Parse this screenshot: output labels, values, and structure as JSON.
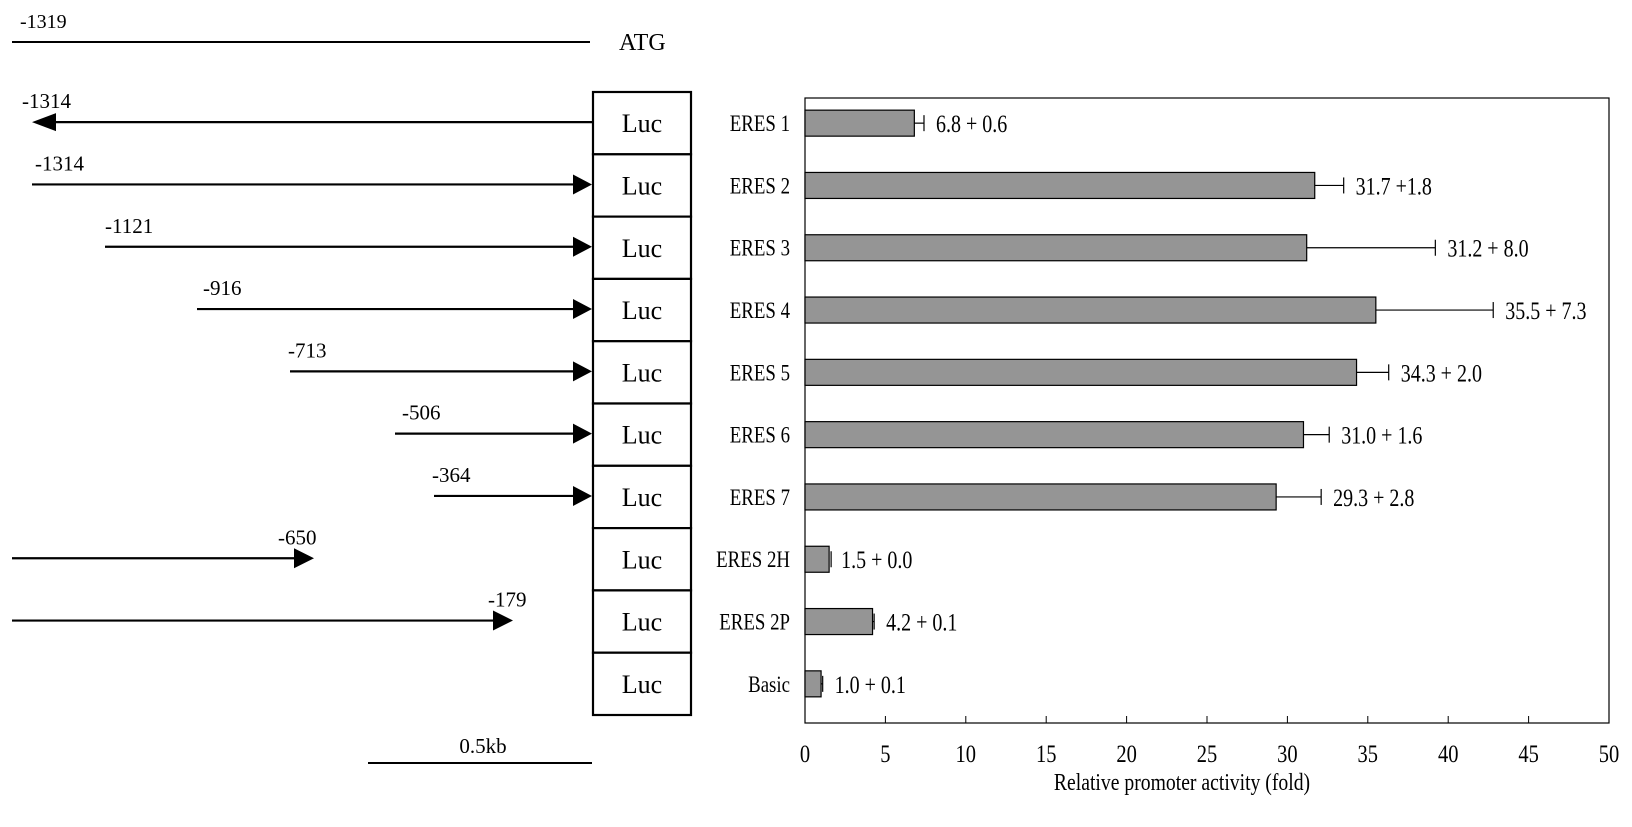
{
  "diagram": {
    "genomic_line": {
      "start_label": "-1319",
      "end_label": "ATG"
    },
    "reporter_label": "Luc",
    "scale_bar": {
      "label": "0.5kb",
      "length_kb": 0.5
    },
    "constructs": [
      {
        "name": "ERES 1",
        "position_label": "-1314",
        "orientation": "reverse"
      },
      {
        "name": "ERES 2",
        "position_label": "-1314",
        "orientation": "forward"
      },
      {
        "name": "ERES 3",
        "position_label": "-1121",
        "orientation": "forward"
      },
      {
        "name": "ERES 4",
        "position_label": "-916",
        "orientation": "forward"
      },
      {
        "name": "ERES 5",
        "position_label": "-713",
        "orientation": "forward"
      },
      {
        "name": "ERES 6",
        "position_label": "-506",
        "orientation": "forward"
      },
      {
        "name": "ERES 7",
        "position_label": "-364",
        "orientation": "forward"
      },
      {
        "name": "ERES 2H",
        "position_label": "-650",
        "orientation": "forward-detached"
      },
      {
        "name": "ERES 2P",
        "position_label": "-179",
        "orientation": "forward-detached"
      },
      {
        "name": "Basic",
        "position_label": "",
        "orientation": "none"
      }
    ]
  },
  "chart_data": {
    "type": "bar",
    "orientation": "horizontal",
    "categories": [
      "ERES 1",
      "ERES 2",
      "ERES 3",
      "ERES 4",
      "ERES 5",
      "ERES 6",
      "ERES 7",
      "ERES 2H",
      "ERES 2P",
      "Basic"
    ],
    "values": [
      6.8,
      31.7,
      31.2,
      35.5,
      34.3,
      31.0,
      29.3,
      1.5,
      4.2,
      1.0
    ],
    "errors": [
      0.6,
      1.8,
      8.0,
      7.3,
      2.0,
      1.6,
      2.8,
      0.0,
      0.1,
      0.1
    ],
    "data_labels": [
      "6.8 + 0.6",
      "31.7 +1.8",
      "31.2 + 8.0",
      "35.5 + 7.3",
      "34.3 + 2.0",
      "31.0 + 1.6",
      "29.3 + 2.8",
      "1.5 + 0.0",
      "4.2 + 0.1",
      "1.0 + 0.1"
    ],
    "xlabel": "Relative promoter activity (fold)",
    "ylabel": "",
    "xlim": [
      0,
      50
    ],
    "xticks": [
      "0",
      "5",
      "10",
      "15",
      "20",
      "25",
      "30",
      "35",
      "40",
      "45",
      "50"
    ],
    "bar_color": "#959595",
    "grid": false
  }
}
